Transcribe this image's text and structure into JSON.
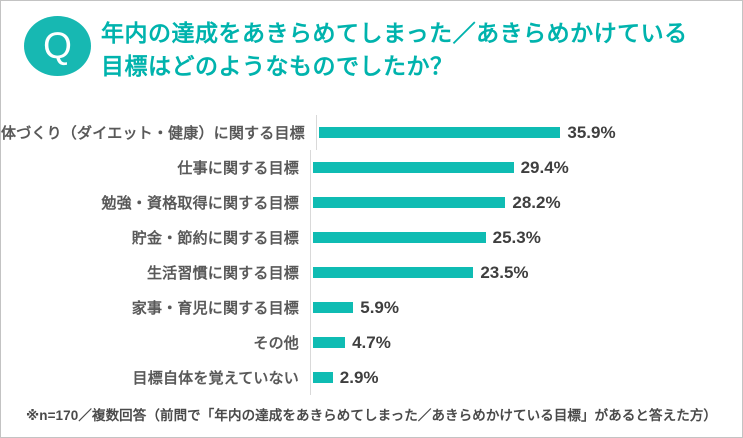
{
  "colors": {
    "accent_teal": "#0fbcb3",
    "title_teal": "#00b3ad",
    "badge_teal": "#17b8b2",
    "category_label": "#595959",
    "value_label": "#3f3f3f",
    "axis_line": "#d9d9d9",
    "frame_border": "#c3c3c3"
  },
  "header": {
    "badge": "Q",
    "title_line1": "年内の達成をあきらめてしまった／あきらめかけている",
    "title_line2": "目標はどのようなものでしたか？"
  },
  "chart_data": {
    "type": "bar",
    "orientation": "horizontal",
    "title": "",
    "xlabel": "",
    "ylabel": "",
    "categories": [
      "体づくり（ダイエット・健康）に関する目標",
      "仕事に関する目標",
      "勉強・資格取得に関する目標",
      "貯金・節約に関する目標",
      "生活習慣に関する目標",
      "家事・育児に関する目標",
      "その他",
      "目標自体を覚えていない"
    ],
    "values": [
      35.9,
      29.4,
      28.2,
      25.3,
      23.5,
      5.9,
      4.7,
      2.9
    ],
    "value_labels": [
      "35.9%",
      "29.4%",
      "28.2%",
      "25.3%",
      "23.5%",
      "5.9%",
      "4.7%",
      "2.9%"
    ],
    "xlim": [
      0,
      62
    ],
    "grid": false,
    "legend": "none",
    "bar_color": "#0fbcb3",
    "value_label_position": "end-of-bar"
  },
  "footnote": {
    "text": "※n=170／複数回答（前問で「年内の達成をあきらめてしまった／あきらめかけている目標」があると答えた方）"
  }
}
